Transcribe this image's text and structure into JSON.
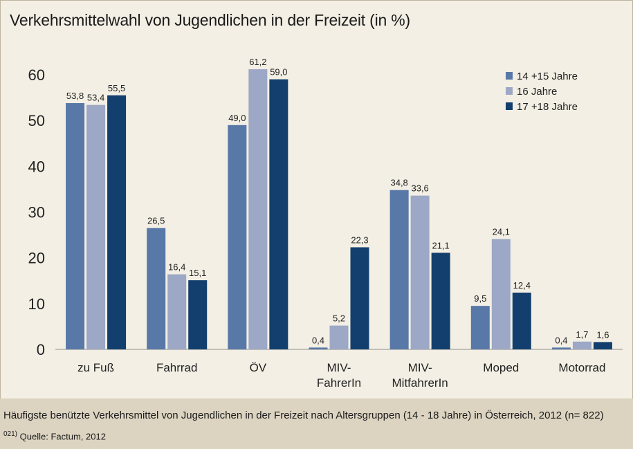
{
  "chart_data": {
    "type": "bar",
    "title": "Verkehrsmittelwahl von Jugendlichen in der Freizeit (in %)",
    "xlabel": "",
    "ylabel": "",
    "ylim": [
      0,
      60
    ],
    "yticks": [
      0,
      10,
      20,
      30,
      40,
      50,
      60
    ],
    "grid": false,
    "legend_position": "top-right",
    "categories": [
      [
        "zu Fuß"
      ],
      [
        "Fahrrad"
      ],
      [
        "ÖV"
      ],
      [
        "MIV-",
        "FahrerIn"
      ],
      [
        "MIV-",
        "MitfahrerIn"
      ],
      [
        "Moped"
      ],
      [
        "Motorrad"
      ]
    ],
    "series": [
      {
        "name": "14 +15 Jahre",
        "color": "#5878a8",
        "values": [
          53.8,
          26.5,
          49.0,
          0.4,
          34.8,
          9.5,
          0.4
        ],
        "labels": [
          "53,8",
          "26,5",
          "49,0",
          "0,4",
          "34,8",
          "9,5",
          "0,4"
        ]
      },
      {
        "name": "16 Jahre",
        "color": "#9da8c6",
        "values": [
          53.4,
          16.4,
          61.2,
          5.2,
          33.6,
          24.1,
          1.7
        ],
        "labels": [
          "53,4",
          "16,4",
          "61,2",
          "5,2",
          "33,6",
          "24,1",
          "1,7"
        ]
      },
      {
        "name": "17 +18 Jahre",
        "color": "#123f6d",
        "values": [
          55.5,
          15.1,
          59.0,
          22.3,
          21.1,
          12.4,
          1.6
        ],
        "labels": [
          "55,5",
          "15,1",
          "59,0",
          "22,3",
          "21,1",
          "12,4",
          "1,6"
        ]
      }
    ]
  },
  "caption": "Häufigste benützte Verkehrsmittel von Jugendlichen in der Freizeit nach Altersgruppen (14 - 18 Jahre) in Österreich, 2012 (n= 822)",
  "source": {
    "number": "021)",
    "text": "Quelle: Factum, 2012"
  }
}
